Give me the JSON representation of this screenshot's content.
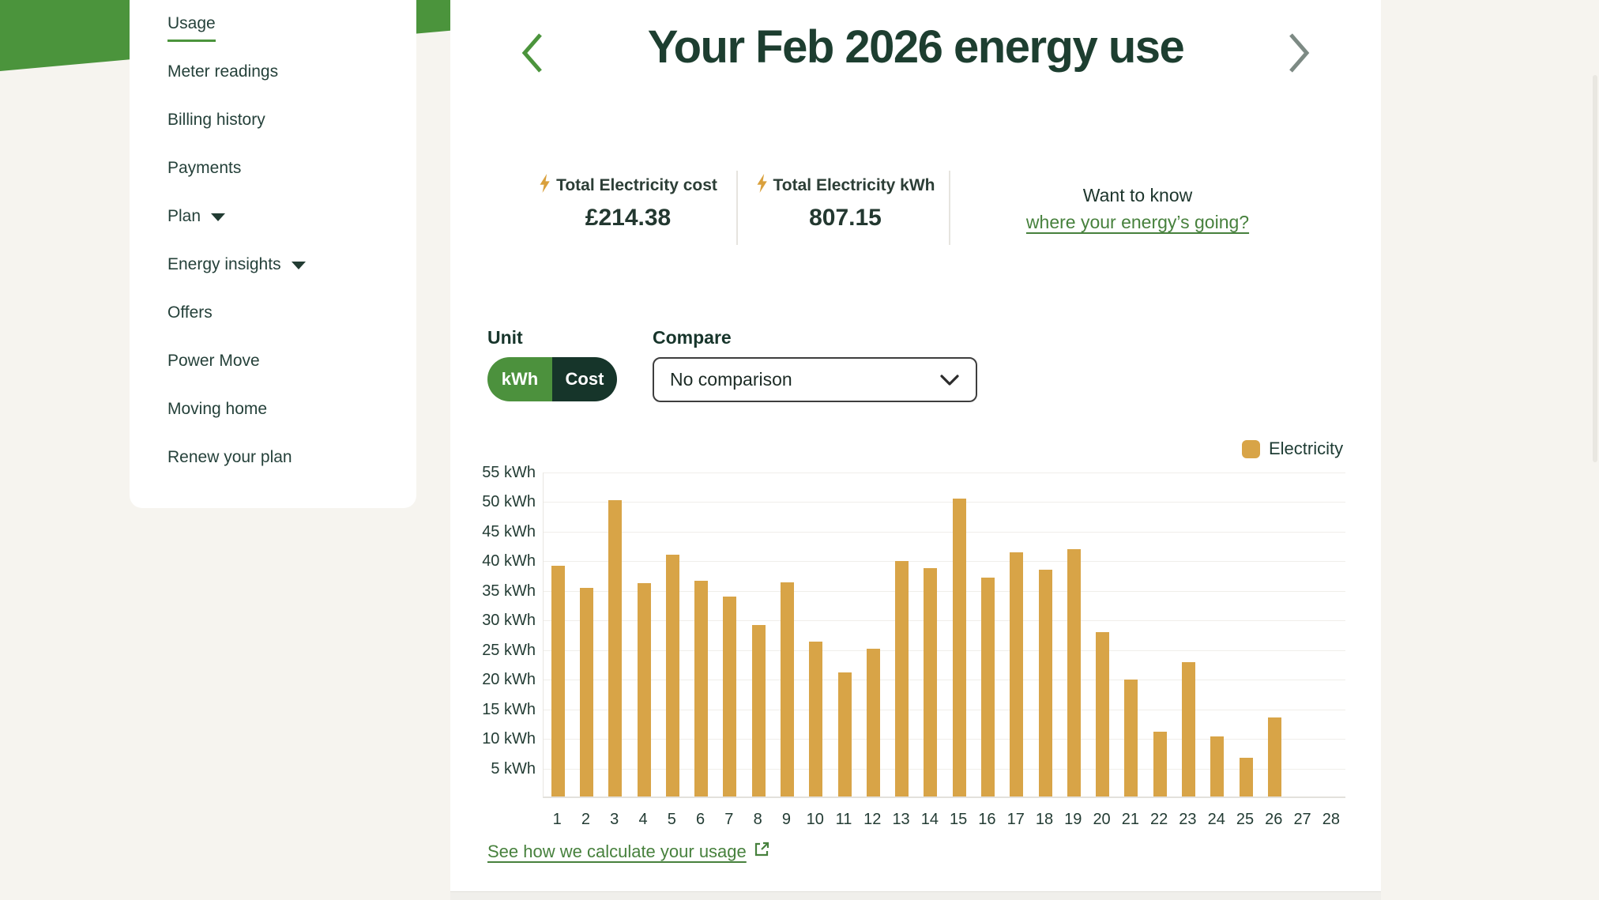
{
  "colors": {
    "brand_green": "#4b943c",
    "dark_green": "#16352a",
    "title_green": "#1d3e30",
    "link_green": "#47813d",
    "bar_orange": "#d8a447",
    "page_beige": "#f6f4ef"
  },
  "icons": {
    "prev": "chevron-left",
    "next": "chevron-right",
    "stat_bolt": "lightning-bolt",
    "nav_caret": "caret-down",
    "dropdown": "chevron-down",
    "external": "external-link"
  },
  "sidebar": {
    "items": [
      {
        "label": "Usage",
        "active": true,
        "caret": false
      },
      {
        "label": "Meter readings",
        "active": false,
        "caret": false
      },
      {
        "label": "Billing history",
        "active": false,
        "caret": false
      },
      {
        "label": "Payments",
        "active": false,
        "caret": false
      },
      {
        "label": "Plan",
        "active": false,
        "caret": true
      },
      {
        "label": "Energy insights",
        "active": false,
        "caret": true
      },
      {
        "label": "Offers",
        "active": false,
        "caret": false
      },
      {
        "label": "Power Move",
        "active": false,
        "caret": false
      },
      {
        "label": "Moving home",
        "active": false,
        "caret": false
      },
      {
        "label": "Renew your plan",
        "active": false,
        "caret": false
      }
    ]
  },
  "header": {
    "title": "Your Feb 2026 energy use",
    "next_disabled": true
  },
  "stats": [
    {
      "label": "Total Electricity cost",
      "value": "£214.38"
    },
    {
      "label": "Total Electricity kWh",
      "value": "807.15"
    }
  ],
  "want_to_know": {
    "line1": "Want to know",
    "link_label": "where your energy’s going?"
  },
  "controls": {
    "unit_label": "Unit",
    "unit_options": [
      "kWh",
      "Cost"
    ],
    "unit_selected": "kWh",
    "compare_label": "Compare",
    "compare_value": "No comparison"
  },
  "chart_data": {
    "type": "bar",
    "series_name": "Electricity",
    "categories": [
      "1",
      "2",
      "3",
      "4",
      "5",
      "6",
      "7",
      "8",
      "9",
      "10",
      "11",
      "12",
      "13",
      "14",
      "15",
      "16",
      "17",
      "18",
      "19",
      "20",
      "21",
      "22",
      "23",
      "24",
      "25",
      "26",
      "27",
      "28"
    ],
    "values": [
      39.0,
      35.3,
      50.0,
      36.0,
      40.8,
      36.5,
      33.8,
      29.0,
      36.2,
      26.2,
      21.0,
      25.0,
      39.8,
      38.6,
      50.3,
      37.0,
      41.3,
      38.3,
      41.8,
      27.8,
      19.8,
      11.0,
      22.7,
      10.1,
      6.6,
      13.4,
      0,
      0
    ],
    "ylim": [
      0,
      55
    ],
    "yticks": [
      {
        "v": 55,
        "label": "55 kWh"
      },
      {
        "v": 50,
        "label": "50 kWh"
      },
      {
        "v": 45,
        "label": "45 kWh"
      },
      {
        "v": 40,
        "label": "40 kWh"
      },
      {
        "v": 35,
        "label": "35 kWh"
      },
      {
        "v": 30,
        "label": "30 kWh"
      },
      {
        "v": 25,
        "label": "25 kWh"
      },
      {
        "v": 20,
        "label": "20 kWh"
      },
      {
        "v": 15,
        "label": "15 kWh"
      },
      {
        "v": 10,
        "label": "10 kWh"
      },
      {
        "v": 5,
        "label": "5 kWh"
      }
    ],
    "grid": true,
    "legend": {
      "label": "Electricity",
      "position": "top-right"
    },
    "bar_color": "#d8a447"
  },
  "footer_link": {
    "label": "See how we calculate your usage"
  }
}
